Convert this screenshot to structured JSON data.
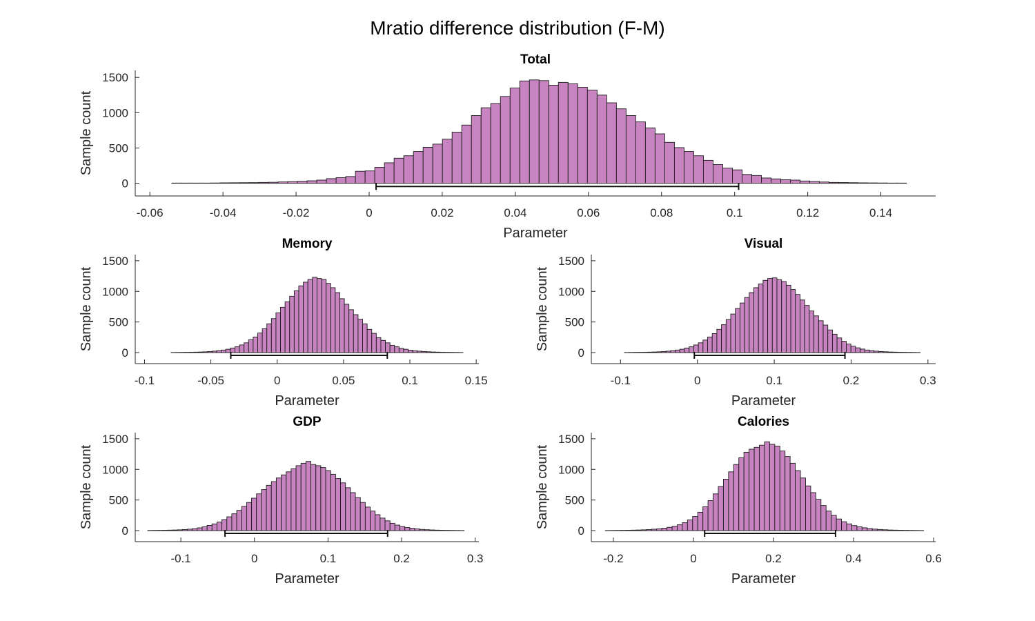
{
  "figure": {
    "suptitle": "Mratio difference distribution (F-M)",
    "bar_color": "#c884c0",
    "edge_color": "#1a1a1a"
  },
  "chart_data": [
    {
      "type": "bar",
      "title": "Total",
      "xlabel": "Parameter",
      "ylabel": "Sample count",
      "xlim": [
        -0.064,
        0.155
      ],
      "ylim": [
        -180,
        1600
      ],
      "xticks": [
        -0.06,
        -0.04,
        -0.02,
        0,
        0.02,
        0.04,
        0.06,
        0.08,
        0.1,
        0.12,
        0.14
      ],
      "xtick_labels": [
        "-0.06",
        "-0.04",
        "-0.02",
        "0",
        "0.02",
        "0.04",
        "0.06",
        "0.08",
        "0.1",
        "0.12",
        "0.14"
      ],
      "yticks": [
        0,
        500,
        1000,
        1500
      ],
      "ytick_labels": [
        "0",
        "500",
        "1000",
        "1500"
      ],
      "hist_range": [
        -0.054,
        0.147
      ],
      "counts": [
        3,
        3,
        3,
        3,
        4,
        6,
        7,
        8,
        9,
        12,
        14,
        19,
        23,
        28,
        35,
        45,
        65,
        80,
        95,
        170,
        175,
        225,
        290,
        355,
        390,
        450,
        510,
        555,
        625,
        725,
        825,
        960,
        1070,
        1130,
        1230,
        1350,
        1450,
        1465,
        1455,
        1390,
        1430,
        1410,
        1360,
        1320,
        1250,
        1140,
        1055,
        960,
        870,
        785,
        700,
        580,
        505,
        450,
        390,
        325,
        265,
        215,
        190,
        125,
        110,
        75,
        62,
        50,
        45,
        32,
        25,
        18,
        12,
        10,
        8,
        6,
        5,
        4,
        3,
        3
      ],
      "hdi": [
        0.0019,
        0.1011
      ]
    },
    {
      "type": "bar",
      "title": "Memory",
      "xlabel": "Parameter",
      "ylabel": "Sample count",
      "xlim": [
        -0.107,
        0.152
      ],
      "ylim": [
        -180,
        1600
      ],
      "xticks": [
        -0.1,
        -0.05,
        0,
        0.05,
        0.1,
        0.15
      ],
      "xtick_labels": [
        "-0.1",
        "-0.05",
        "0",
        "0.05",
        "0.1",
        "0.15"
      ],
      "yticks": [
        0,
        500,
        1000,
        1500
      ],
      "ytick_labels": [
        "0",
        "500",
        "1000",
        "1500"
      ],
      "hist_range": [
        -0.08,
        0.14
      ],
      "counts": [
        2,
        3,
        4,
        5,
        6,
        8,
        10,
        13,
        18,
        24,
        32,
        42,
        55,
        75,
        95,
        125,
        160,
        210,
        255,
        320,
        390,
        470,
        555,
        650,
        740,
        830,
        920,
        1010,
        1090,
        1150,
        1195,
        1230,
        1210,
        1195,
        1130,
        1060,
        980,
        880,
        790,
        700,
        620,
        545,
        470,
        380,
        315,
        245,
        200,
        160,
        120,
        95,
        70,
        55,
        40,
        30,
        24,
        18,
        14,
        10,
        8,
        6,
        5,
        4,
        3,
        2
      ],
      "hdi": [
        -0.035,
        0.083
      ]
    },
    {
      "type": "bar",
      "title": "Visual",
      "xlabel": "Parameter",
      "ylabel": "Sample count",
      "xlim": [
        -0.138,
        0.31
      ],
      "ylim": [
        -180,
        1600
      ],
      "xticks": [
        -0.1,
        0,
        0.1,
        0.2,
        0.3
      ],
      "xtick_labels": [
        "-0.1",
        "0",
        "0.1",
        "0.2",
        "0.3"
      ],
      "yticks": [
        0,
        500,
        1000,
        1500
      ],
      "ytick_labels": [
        "0",
        "500",
        "1000",
        "1500"
      ],
      "hist_range": [
        -0.095,
        0.29
      ],
      "counts": [
        2,
        3,
        4,
        5,
        6,
        8,
        10,
        13,
        18,
        24,
        32,
        42,
        55,
        75,
        95,
        125,
        160,
        205,
        255,
        310,
        380,
        455,
        540,
        630,
        720,
        810,
        900,
        980,
        1060,
        1120,
        1180,
        1210,
        1220,
        1190,
        1160,
        1100,
        1030,
        950,
        860,
        770,
        680,
        600,
        520,
        450,
        370,
        300,
        240,
        185,
        140,
        105,
        78,
        58,
        42,
        32,
        24,
        18,
        14,
        10,
        8,
        6,
        5,
        4,
        3,
        2
      ],
      "hdi": [
        -0.004,
        0.192
      ]
    },
    {
      "type": "bar",
      "title": "GDP",
      "xlabel": "Parameter",
      "ylabel": "Sample count",
      "xlim": [
        -0.162,
        0.305
      ],
      "ylim": [
        -180,
        1600
      ],
      "xticks": [
        -0.1,
        0,
        0.1,
        0.2,
        0.3
      ],
      "xtick_labels": [
        "-0.1",
        "0",
        "0.1",
        "0.2",
        "0.3"
      ],
      "yticks": [
        0,
        500,
        1000,
        1500
      ],
      "ytick_labels": [
        "0",
        "500",
        "1000",
        "1500"
      ],
      "hist_range": [
        -0.145,
        0.285
      ],
      "counts": [
        3,
        4,
        5,
        6,
        8,
        10,
        13,
        18,
        24,
        32,
        45,
        62,
        85,
        110,
        140,
        180,
        225,
        275,
        330,
        395,
        460,
        530,
        600,
        670,
        740,
        800,
        860,
        910,
        960,
        1010,
        1060,
        1100,
        1130,
        1080,
        1060,
        1030,
        980,
        920,
        850,
        780,
        700,
        620,
        540,
        460,
        385,
        320,
        260,
        205,
        160,
        120,
        90,
        68,
        50,
        38,
        28,
        20,
        15,
        11,
        8,
        6,
        5,
        4,
        3,
        2
      ],
      "hdi": [
        -0.04,
        0.181
      ]
    },
    {
      "type": "bar",
      "title": "Calories",
      "xlabel": "Parameter",
      "ylabel": "Sample count",
      "xlim": [
        -0.255,
        0.605
      ],
      "ylim": [
        -180,
        1600
      ],
      "xticks": [
        -0.2,
        0,
        0.2,
        0.4,
        0.6
      ],
      "xtick_labels": [
        "-0.2",
        "0",
        "0.2",
        "0.4",
        "0.6"
      ],
      "yticks": [
        0,
        500,
        1000,
        1500
      ],
      "ytick_labels": [
        "0",
        "500",
        "1000",
        "1500"
      ],
      "hist_range": [
        -0.22,
        0.575
      ],
      "counts": [
        2,
        3,
        4,
        5,
        6,
        8,
        10,
        13,
        17,
        23,
        30,
        40,
        54,
        72,
        96,
        130,
        175,
        230,
        300,
        390,
        490,
        600,
        720,
        840,
        960,
        1080,
        1190,
        1280,
        1330,
        1360,
        1395,
        1450,
        1410,
        1380,
        1300,
        1210,
        1100,
        980,
        860,
        730,
        620,
        510,
        410,
        320,
        250,
        190,
        145,
        110,
        82,
        62,
        46,
        34,
        25,
        19,
        14,
        10,
        8,
        6,
        5,
        4,
        3,
        2
      ],
      "hdi": [
        0.028,
        0.355
      ]
    }
  ]
}
